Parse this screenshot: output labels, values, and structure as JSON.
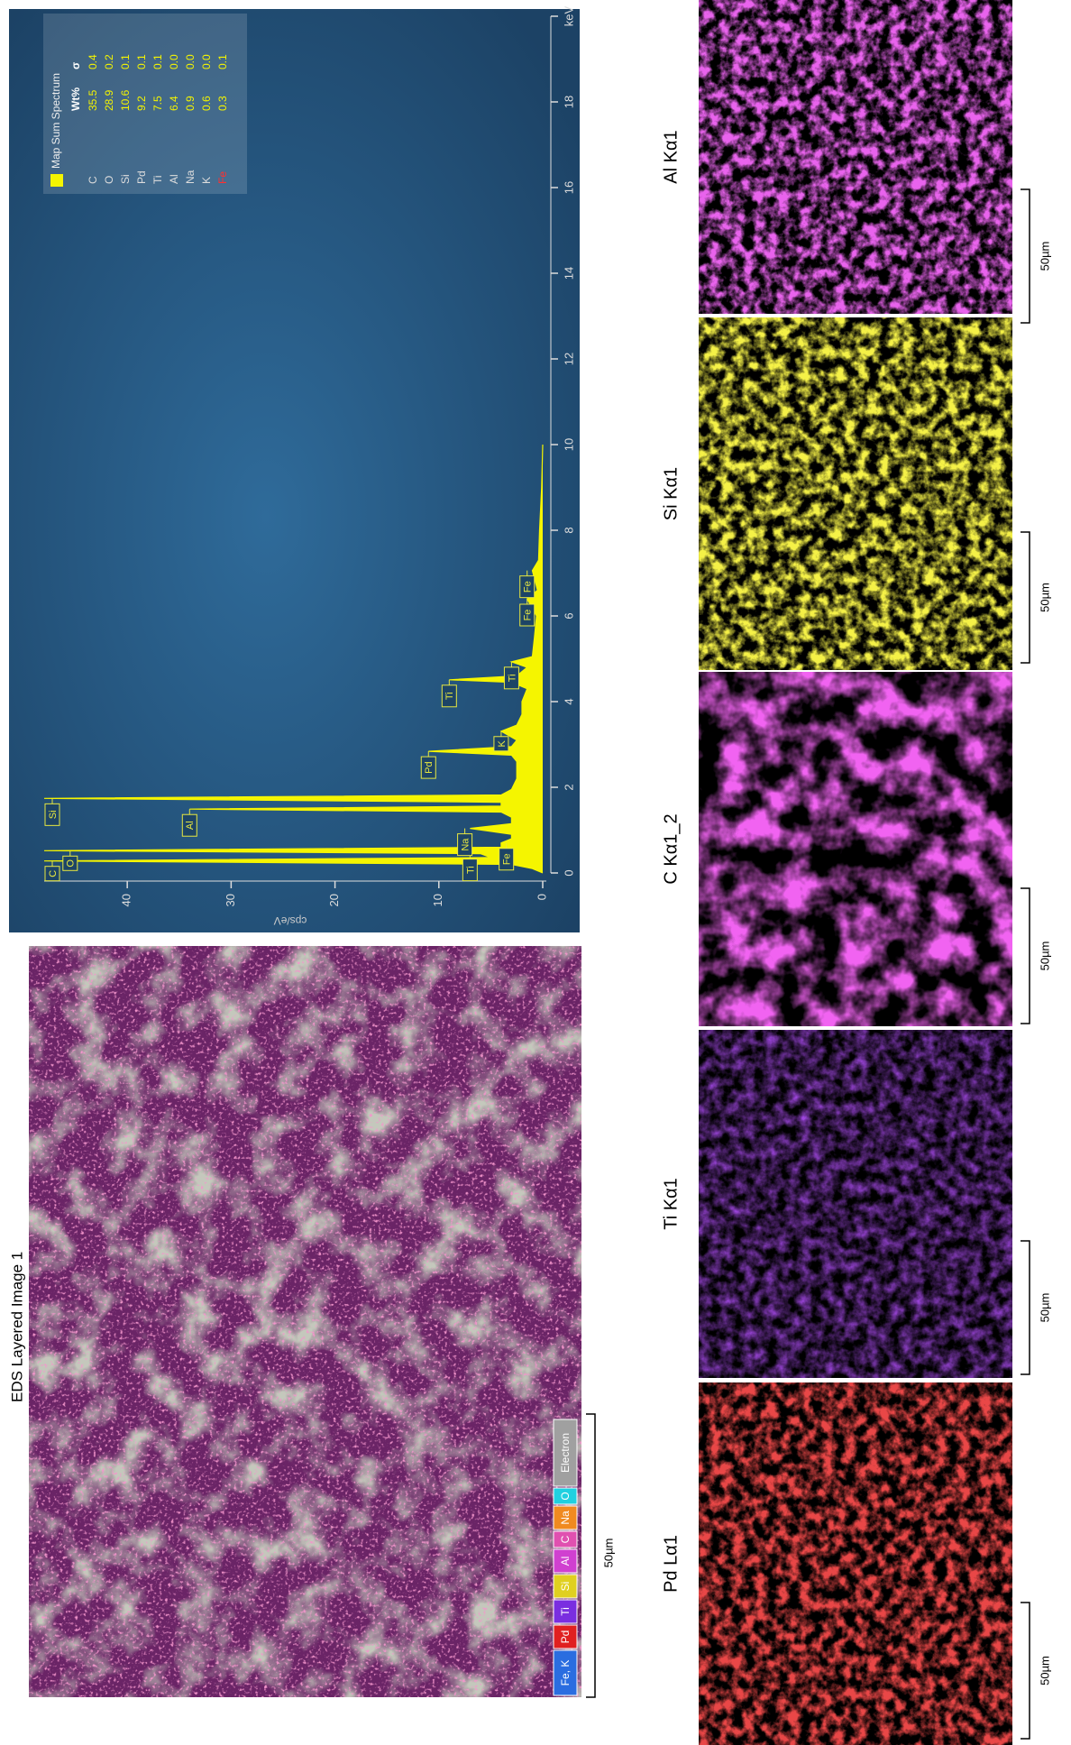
{
  "layered_image": {
    "title": "EDS Layered Image 1",
    "scale_bar": "50µm",
    "legend": [
      {
        "label": "Fe, K",
        "color": "#2a6de0"
      },
      {
        "label": "Pd",
        "color": "#e02020"
      },
      {
        "label": "Ti",
        "color": "#7a2ee0"
      },
      {
        "label": "Si",
        "color": "#e0d020"
      },
      {
        "label": "Al",
        "color": "#d040d0"
      },
      {
        "label": "C",
        "color": "#e050b0"
      },
      {
        "label": "Na",
        "color": "#f08a20"
      },
      {
        "label": "O",
        "color": "#20d0e0"
      },
      {
        "label": "Electron",
        "color": "#a0a0a0"
      }
    ]
  },
  "chart_data": {
    "type": "area",
    "y_label": "cps/eV",
    "color": "#f5f500",
    "x": [
      0,
      0.1,
      0.2,
      0.28,
      0.36,
      0.45,
      0.52,
      0.6,
      0.7,
      0.8,
      0.9,
      1.04,
      1.15,
      1.3,
      1.42,
      1.49,
      1.56,
      1.65,
      1.74,
      1.82,
      1.95,
      2.2,
      2.6,
      2.75,
      2.84,
      2.95,
      3.1,
      3.31,
      3.45,
      3.7,
      4.0,
      4.3,
      4.45,
      4.51,
      4.6,
      4.8,
      4.93,
      5.05,
      5.5,
      6.0,
      6.4,
      6.6,
      7.06,
      7.3,
      8,
      9,
      10
    ],
    "values": [
      0,
      1,
      3,
      48,
      5,
      6,
      48,
      4,
      4,
      3,
      3,
      7,
      3,
      3,
      4,
      34,
      4,
      4,
      48,
      4,
      3,
      2.5,
      2.5,
      3,
      11,
      3,
      2.5,
      4,
      2.5,
      2,
      2,
      1.5,
      3,
      9,
      2.5,
      1.5,
      3,
      1,
      0.8,
      0.6,
      1.5,
      0.5,
      1,
      0.4,
      0.3,
      0.1,
      0
    ],
    "xlim": [
      0,
      20
    ],
    "ylim": [
      0,
      48
    ],
    "xticks": [
      0,
      2,
      4,
      6,
      8,
      10,
      12,
      14,
      16,
      18,
      {
        "value": 20,
        "label": "keV"
      }
    ],
    "yticks": [
      0,
      10,
      20,
      30,
      40
    ],
    "peak_labels": [
      {
        "label": "C",
        "x": 0.28,
        "y": 48
      },
      {
        "label": "O",
        "x": 0.52,
        "y": 45.5
      },
      {
        "label": "Ti",
        "x": 0.45,
        "y": 7
      },
      {
        "label": "Fe",
        "x": 0.7,
        "y": 3.5
      },
      {
        "label": "Na",
        "x": 1.04,
        "y": 7.5
      },
      {
        "label": "Al",
        "x": 1.49,
        "y": 34
      },
      {
        "label": "Si",
        "x": 1.74,
        "y": 48
      },
      {
        "label": "Pd",
        "x": 2.84,
        "y": 11
      },
      {
        "label": "K",
        "x": 3.31,
        "y": 4
      },
      {
        "label": "Ti",
        "x": 4.51,
        "y": 9
      },
      {
        "label": "Ti",
        "x": 4.93,
        "y": 3
      },
      {
        "label": "Fe",
        "x": 6.4,
        "y": 1.5
      },
      {
        "label": "Fe",
        "x": 7.06,
        "y": 1.5
      }
    ],
    "legend": {
      "title": "Map Sum Spectrum",
      "columns": [
        "Wt%",
        "σ"
      ],
      "rows": [
        {
          "element": "C",
          "wt": "35.5",
          "sigma": "0.4",
          "color": "#dddddd"
        },
        {
          "element": "O",
          "wt": "28.9",
          "sigma": "0.2",
          "color": "#dddddd"
        },
        {
          "element": "Si",
          "wt": "10.6",
          "sigma": "0.1",
          "color": "#dddddd"
        },
        {
          "element": "Pd",
          "wt": "9.2",
          "sigma": "0.1",
          "color": "#dddddd"
        },
        {
          "element": "Ti",
          "wt": "7.5",
          "sigma": "0.1",
          "color": "#dddddd"
        },
        {
          "element": "Al",
          "wt": "6.4",
          "sigma": "0.0",
          "color": "#dddddd"
        },
        {
          "element": "Na",
          "wt": "0.9",
          "sigma": "0.0",
          "color": "#dddddd"
        },
        {
          "element": "K",
          "wt": "0.6",
          "sigma": "0.0",
          "color": "#dddddd"
        },
        {
          "element": "Fe",
          "wt": "0.3",
          "sigma": "0.1",
          "color": "#ff3030"
        }
      ]
    }
  },
  "maps": [
    {
      "label": "Pd Lα1",
      "color": "#d01010",
      "scale_bar": "50µm"
    },
    {
      "label": "Ti Kα1",
      "color": "#5a10c0",
      "scale_bar": "50µm"
    },
    {
      "label": "C Kα1_2",
      "color": "#e020e0",
      "scale_bar": "50µm"
    },
    {
      "label": "Si Kα1",
      "color": "#e8e010",
      "scale_bar": "50µm"
    },
    {
      "label": "Al Kα1",
      "color": "#d020d8",
      "scale_bar": "50µm"
    }
  ]
}
